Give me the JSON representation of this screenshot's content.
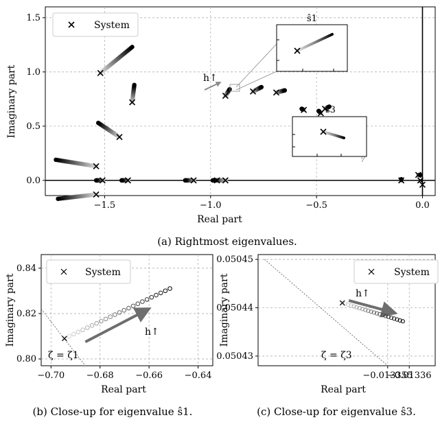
{
  "panel_a": {
    "caption": "(a) Rightmost eigenvalues.",
    "xlabel": "Real part",
    "ylabel": "Imaginary part",
    "legend": "System",
    "arrow_label": "h↑",
    "inset1_title": "ŝ1",
    "inset3_title": "ŝ3"
  },
  "panel_b": {
    "caption": "(b) Close-up for eigenvalue ŝ1.",
    "xlabel": "Real part",
    "ylabel": "Imaginary part",
    "legend": "System",
    "arrow_label": "h↑",
    "line_label": "ζ = ζ1"
  },
  "panel_c": {
    "caption": "(c) Close-up for eigenvalue ŝ3.",
    "xlabel": "Real part",
    "ylabel": "Imaginary part",
    "legend": "System",
    "arrow_label": "h↑",
    "line_label": "ζ = ζ3"
  },
  "chart_data": [
    {
      "type": "scatter",
      "panel": "a",
      "xlabel": "Real part",
      "ylabel": "Imaginary part",
      "xlim": [
        -1.78,
        0.06
      ],
      "ylim": [
        -0.14,
        1.6
      ],
      "xticks": [
        -1.5,
        -1.0,
        -0.5,
        0.0
      ],
      "xtick_labels": [
        "−1.5",
        "−1.0",
        "−0.5",
        "0.0"
      ],
      "yticks": [
        0.0,
        0.5,
        1.0,
        1.5
      ],
      "ytick_labels": [
        "0.0",
        "0.5",
        "1.0",
        "1.5"
      ],
      "grid": true,
      "legend": {
        "entries": [
          "System"
        ],
        "placement": "top-left"
      },
      "system": [
        {
          "x": -1.52,
          "y": 0.99
        },
        {
          "x": -1.37,
          "y": 0.72
        },
        {
          "x": -1.43,
          "y": 0.4
        },
        {
          "x": -1.54,
          "y": 0.13
        },
        {
          "x": -1.54,
          "y": -0.13
        },
        {
          "x": -1.51,
          "y": 0.0
        },
        {
          "x": -1.39,
          "y": 0.0
        },
        {
          "x": -1.08,
          "y": 0.0
        },
        {
          "x": -0.93,
          "y": 0.0
        },
        {
          "x": -0.97,
          "y": 0.0
        },
        {
          "x": -0.93,
          "y": 0.78
        },
        {
          "x": -0.8,
          "y": 0.82
        },
        {
          "x": -0.69,
          "y": 0.81
        },
        {
          "x": -0.56,
          "y": 0.65
        },
        {
          "x": -0.48,
          "y": 0.62
        },
        {
          "x": -0.46,
          "y": 0.66
        },
        {
          "x": -0.1,
          "y": 0.0
        },
        {
          "x": -0.01,
          "y": 0.0
        },
        {
          "x": -0.02,
          "y": 0.05
        },
        {
          "x": 0.0,
          "y": -0.04
        }
      ],
      "trajectories": [
        {
          "start": [
            -1.52,
            0.99
          ],
          "end": [
            -1.37,
            1.23
          ]
        },
        {
          "start": [
            -1.37,
            0.72
          ],
          "end": [
            -1.36,
            0.88
          ]
        },
        {
          "start": [
            -1.43,
            0.4
          ],
          "end": [
            -1.53,
            0.53
          ]
        },
        {
          "start": [
            -1.54,
            0.13
          ],
          "end": [
            -1.73,
            0.19
          ]
        },
        {
          "start": [
            -1.54,
            -0.13
          ],
          "end": [
            -1.72,
            -0.17
          ]
        },
        {
          "start": [
            -1.51,
            0.0
          ],
          "end": [
            -1.54,
            0.0
          ]
        },
        {
          "start": [
            -1.39,
            0.0
          ],
          "end": [
            -1.42,
            0.0
          ]
        },
        {
          "start": [
            -1.08,
            0.0
          ],
          "end": [
            -1.12,
            0.0
          ]
        },
        {
          "start": [
            -0.93,
            0.0
          ],
          "end": [
            -0.99,
            0.0
          ]
        },
        {
          "start": [
            -0.93,
            0.78
          ],
          "end": [
            -0.91,
            0.84
          ]
        },
        {
          "start": [
            -0.8,
            0.82
          ],
          "end": [
            -0.76,
            0.86
          ]
        },
        {
          "start": [
            -0.69,
            0.81
          ],
          "end": [
            -0.65,
            0.83
          ]
        },
        {
          "start": [
            -0.56,
            0.65
          ],
          "end": [
            -0.57,
            0.66
          ]
        },
        {
          "start": [
            -0.48,
            0.62
          ],
          "end": [
            -0.49,
            0.64
          ]
        },
        {
          "start": [
            -0.46,
            0.66
          ],
          "end": [
            -0.44,
            0.68
          ]
        },
        {
          "start": [
            -0.1,
            0.0
          ],
          "end": [
            -0.1,
            0.01
          ]
        },
        {
          "start": [
            -0.02,
            0.05
          ],
          "end": [
            -0.01,
            0.05
          ]
        }
      ]
    },
    {
      "type": "scatter",
      "panel": "b",
      "xlabel": "Real part",
      "ylabel": "Imaginary part",
      "xlim": [
        -0.704,
        -0.634
      ],
      "ylim": [
        0.797,
        0.846
      ],
      "xticks": [
        -0.7,
        -0.68,
        -0.66,
        -0.64
      ],
      "xtick_labels": [
        "−0.70",
        "−0.68",
        "−0.66",
        "−0.64"
      ],
      "yticks": [
        0.8,
        0.82,
        0.84
      ],
      "ytick_labels": [
        "0.80",
        "0.82",
        "0.84"
      ],
      "grid": true,
      "legend": {
        "entries": [
          "System"
        ],
        "placement": "top-left"
      },
      "system": [
        {
          "x": -0.6945,
          "y": 0.809
        }
      ],
      "trajectory": {
        "start": [
          -0.6945,
          0.809
        ],
        "end": [
          -0.6515,
          0.831
        ],
        "count": 24
      },
      "zeta_line": {
        "label": "ζ = ζ1",
        "from": [
          -0.704,
          0.822
        ],
        "to": [
          -0.686,
          0.797
        ]
      },
      "arrow": {
        "from": [
          -0.686,
          0.8075
        ],
        "to": [
          -0.662,
          0.821
        ]
      }
    },
    {
      "type": "scatter",
      "panel": "c",
      "xlabel": "Real part",
      "ylabel": "Imaginary part",
      "xlim": [
        -0.013325,
        -0.013366
      ],
      "ylim": [
        0.050428,
        0.050451
      ],
      "xticks": [
        -0.01336,
        -0.013355
      ],
      "xtick_labels": [
        "−0.01336",
        "−0.013355"
      ],
      "yticks": [
        0.05043,
        0.05044,
        0.05045
      ],
      "ytick_labels": [
        "0.05043",
        "0.05044",
        "0.05045"
      ],
      "grid": true,
      "legend": {
        "entries": [
          "System"
        ],
        "placement": "top-right"
      },
      "system": [
        {
          "x": -0.0133445,
          "y": 0.050441
        }
      ],
      "trajectory": {
        "start": [
          -0.0133445,
          0.050441
        ],
        "end": [
          -0.0133585,
          0.0504372
        ],
        "count": 22
      },
      "zeta_line": {
        "label": "ζ = ζ3",
        "from": [
          -0.0133265,
          0.05045
        ],
        "to": [
          -0.013355,
          0.050428
        ]
      },
      "arrow": {
        "from": [
          -0.013346,
          0.0504415
        ],
        "to": [
          -0.0133555,
          0.0504392
        ]
      }
    }
  ]
}
